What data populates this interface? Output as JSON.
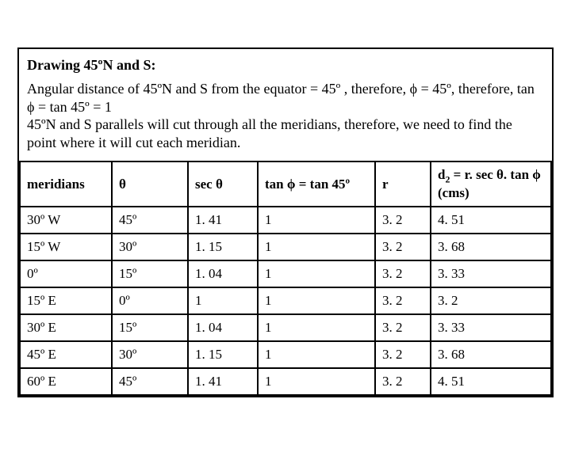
{
  "title": "Drawing 45ºN and S:",
  "paragraph": "Angular distance of 45ºN and S from the equator = 45º , therefore, ϕ = 45º, therefore, tan ϕ = tan 45º = 1\n45ºN and S parallels will cut through all the meridians, therefore, we need to find the point where it will cut each meridian.",
  "columns": [
    "meridians",
    " θ",
    "sec θ",
    "tan ϕ = tan 45º",
    "r",
    "d2 = r. sec θ. tan ϕ  (cms)"
  ],
  "rows": [
    [
      "30º W",
      "45º",
      "1. 41",
      "1",
      "3. 2",
      "4. 51"
    ],
    [
      "15º W",
      "30º",
      "1. 15",
      "1",
      "3. 2",
      "3. 68"
    ],
    [
      "  0º",
      "15º",
      "1. 04",
      "1",
      "3. 2",
      "3. 33"
    ],
    [
      "15º E",
      " 0º",
      "1",
      "1",
      "3. 2",
      "3. 2"
    ],
    [
      "30º E",
      "15º",
      "1. 04",
      "1",
      "3. 2",
      "3. 33"
    ],
    [
      "45º E",
      "30º",
      "1. 15",
      "1",
      "3. 2",
      "3. 68"
    ],
    [
      "60º E",
      "45º",
      "1. 41",
      "1",
      "3. 2",
      "4. 51"
    ]
  ]
}
